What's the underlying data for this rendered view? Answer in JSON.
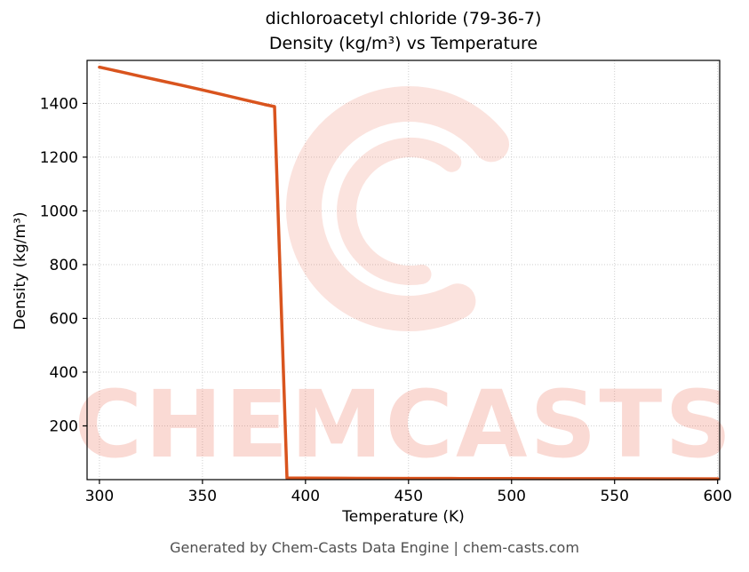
{
  "header": {
    "title_line1": "dichloroacetyl chloride (79-36-7)",
    "title_line2": "Density (kg/m³) vs Temperature"
  },
  "footer": {
    "text": "Generated by Chem-Casts Data Engine | chem-casts.com"
  },
  "watermark": {
    "text": "CHEMCASTS",
    "color": "#e8583a",
    "opacity": 0.22
  },
  "chart_data": {
    "type": "line",
    "title": "dichloroacetyl chloride (79-36-7) — Density (kg/m³) vs Temperature",
    "xlabel": "Temperature (K)",
    "ylabel": "Density (kg/m³)",
    "xlim": [
      294,
      601
    ],
    "ylim": [
      0,
      1560
    ],
    "xticks": [
      300,
      350,
      400,
      450,
      500,
      550,
      600
    ],
    "yticks": [
      200,
      400,
      600,
      800,
      1000,
      1200,
      1400
    ],
    "grid": true,
    "legend": false,
    "line_color": "#d9541e",
    "line_width": 3.5,
    "series": [
      {
        "name": "density",
        "points": [
          [
            300,
            1535
          ],
          [
            310,
            1518
          ],
          [
            320,
            1501
          ],
          [
            330,
            1484
          ],
          [
            340,
            1467
          ],
          [
            350,
            1450
          ],
          [
            360,
            1432
          ],
          [
            370,
            1414
          ],
          [
            380,
            1396
          ],
          [
            385,
            1388
          ],
          [
            391,
            6
          ],
          [
            400,
            5.5
          ],
          [
            425,
            5
          ],
          [
            450,
            4.6
          ],
          [
            475,
            4.3
          ],
          [
            500,
            4.0
          ],
          [
            525,
            3.7
          ],
          [
            550,
            3.5
          ],
          [
            575,
            3.3
          ],
          [
            600,
            3.1
          ]
        ]
      }
    ]
  }
}
